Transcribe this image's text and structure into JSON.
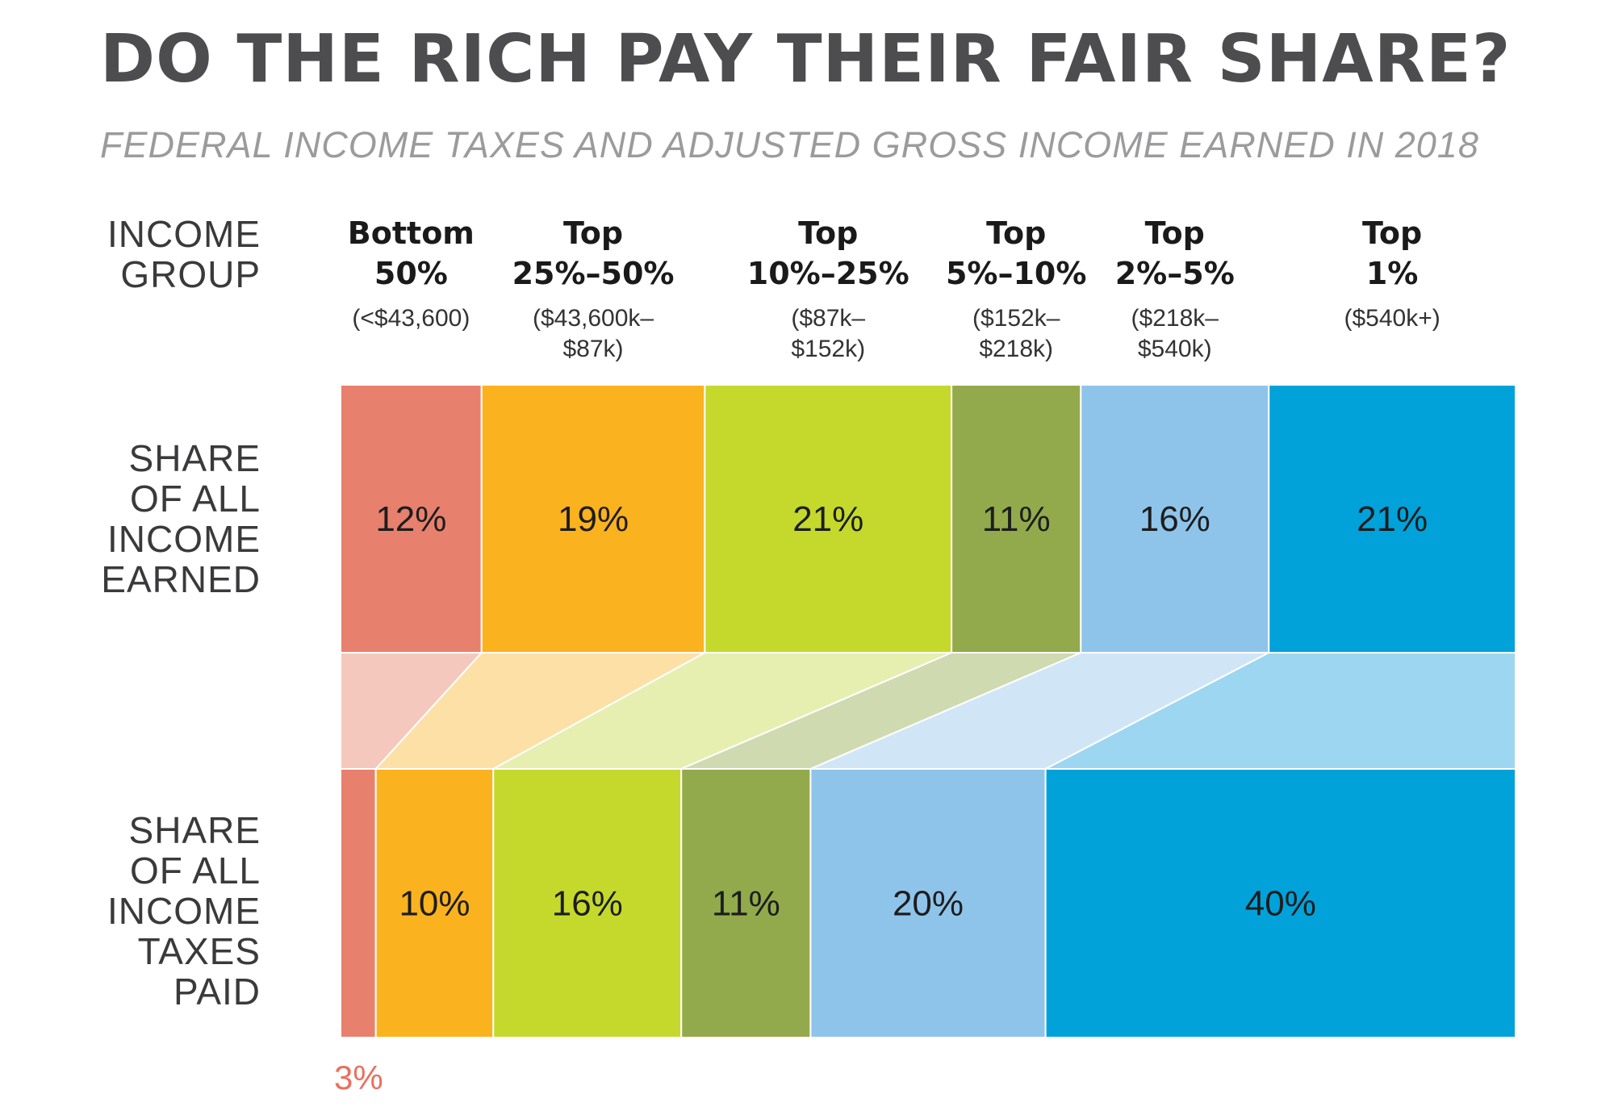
{
  "title": "DO THE RICH PAY THEIR FAIR SHARE?",
  "subtitle": "FEDERAL INCOME TAXES AND ADJUSTED GROSS INCOME EARNED IN 2018",
  "row_labels": {
    "income_group": [
      "INCOME",
      "GROUP"
    ],
    "income_earned": [
      "SHARE",
      "OF ALL",
      "INCOME",
      "EARNED"
    ],
    "taxes_paid": [
      "SHARE",
      "OF ALL",
      "INCOME",
      "TAXES",
      "PAID"
    ]
  },
  "chart_data": {
    "type": "bar",
    "stacked": true,
    "orientation": "horizontal",
    "title": "DO THE RICH PAY THEIR FAIR SHARE?",
    "subtitle": "FEDERAL INCOME TAXES AND ADJUSTED GROSS INCOME EARNED IN 2018",
    "unit": "%",
    "categories": [
      {
        "name": [
          "Bottom",
          "50%"
        ],
        "range": [
          "(<$43,600)"
        ],
        "color": "#e8806e",
        "light_color": "#f5c8bd"
      },
      {
        "name": [
          "Top",
          "25%–50%"
        ],
        "range": [
          "($43,600k–",
          "$87k)"
        ],
        "color": "#fbb21f",
        "light_color": "#fde0a6"
      },
      {
        "name": [
          "Top",
          "10%–25%"
        ],
        "range": [
          "($87k–",
          "$152k)"
        ],
        "color": "#c5d92d",
        "light_color": "#e6efb0"
      },
      {
        "name": [
          "Top",
          "5%–10%"
        ],
        "range": [
          "($152k–",
          "$218k)"
        ],
        "color": "#92aa4b",
        "light_color": "#cfdab0"
      },
      {
        "name": [
          "Top",
          "2%–5%"
        ],
        "range": [
          "($218k–",
          "$540k)"
        ],
        "color": "#8fc4ea",
        "light_color": "#d0e6f7"
      },
      {
        "name": [
          "Top",
          "1%"
        ],
        "range": [
          "($540k+)"
        ],
        "color": "#00a2d9",
        "light_color": "#9dd6f0"
      }
    ],
    "series": [
      {
        "values": [
          12,
          19,
          21,
          11,
          16,
          21
        ],
        "labels": [
          "12%",
          "19%",
          "21%",
          "11%",
          "16%",
          "21%"
        ]
      },
      {
        "values": [
          3,
          10,
          16,
          11,
          20,
          40
        ],
        "labels": [
          "3%",
          "10%",
          "16%",
          "11%",
          "20%",
          "40%"
        ]
      }
    ]
  }
}
